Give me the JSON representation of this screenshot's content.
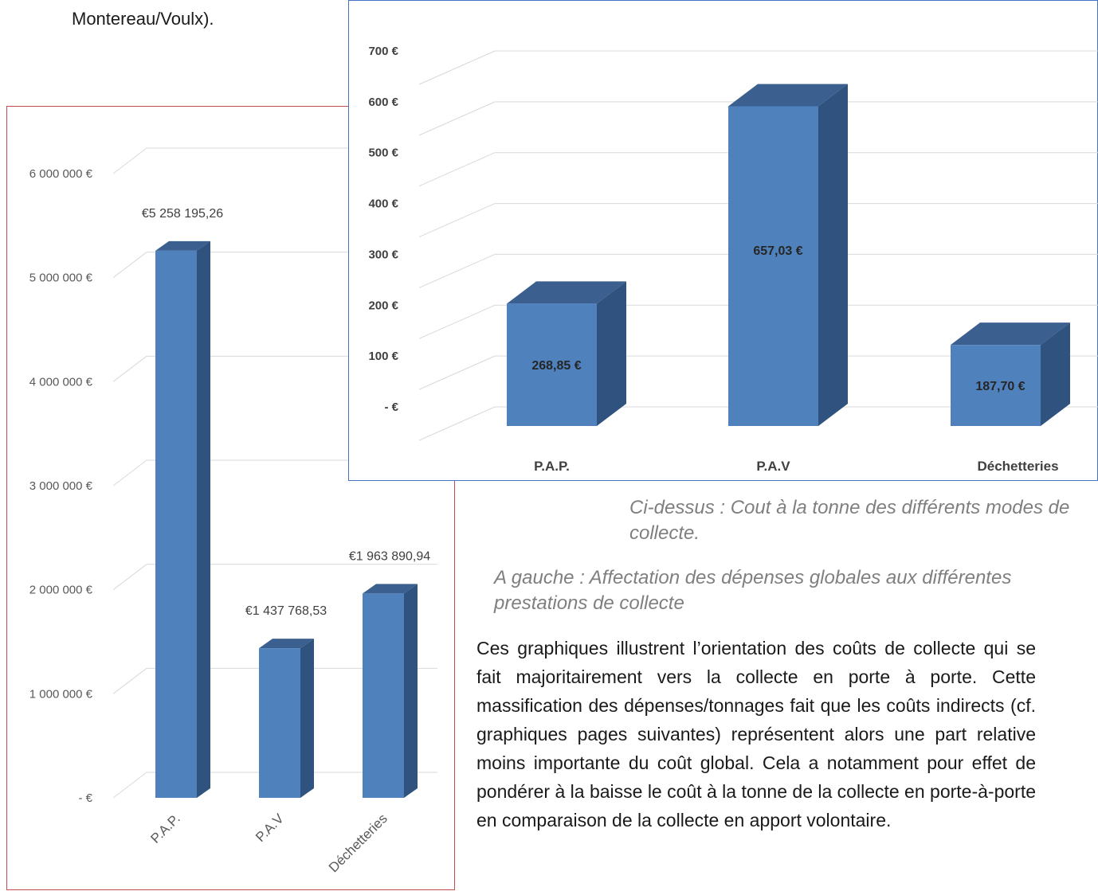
{
  "top_text": "Montereau/Voulx).",
  "captions": {
    "above": "Ci-dessus : Cout à la tonne des différents modes de collecte.",
    "left": "A gauche :  Affectation des dépenses globales aux différentes prestations de collecte"
  },
  "paragraph": "Ces graphiques illustrent l’orientation des coûts de collecte qui se fait majoritairement vers la collecte en porte à porte. Cette massification des dépenses/tonnages fait que les coûts indirects (cf. graphiques pages suivantes) représentent alors une part relative moins importante du coût global. Cela a notamment pour effet de pondérer à la baisse le coût à la tonne de la collecte en porte-à-porte en comparaison de la collecte en apport volontaire.",
  "colors": {
    "bar_front": "#4f81bd",
    "bar_side": "#2f527e",
    "bar_top": "#3b5f8f",
    "left_border": "#c0504d",
    "right_border": "#4472c4"
  },
  "chart_data": [
    {
      "type": "bar",
      "categories": [
        "P.A.P.",
        "P.A.V",
        "Déchetteries"
      ],
      "values": [
        5258195.26,
        1437768.53,
        1963890.94
      ],
      "data_labels": [
        "€5 258 195,26",
        "€1 437 768,53",
        "€1 963 890,94"
      ],
      "ylim": [
        0,
        6000000
      ],
      "y_ticks": [
        "- €",
        "1 000 000 €",
        "2 000 000 €",
        "3 000 000 €",
        "4 000 000 €",
        "5 000 000 €",
        "6 000 000 €"
      ],
      "grid": true,
      "three_d": true
    },
    {
      "type": "bar",
      "categories": [
        "P.A.P.",
        "P.A.V",
        "Déchetteries"
      ],
      "values": [
        268.85,
        657.03,
        187.7
      ],
      "data_labels": [
        "268,85  €",
        "657,03  €",
        "187,70 €"
      ],
      "ylim": [
        0,
        700
      ],
      "y_ticks": [
        "- €",
        "100 €",
        "200 €",
        "300 €",
        "400 €",
        "500 €",
        "600 €",
        "700 €"
      ],
      "grid": true,
      "three_d": true
    }
  ]
}
